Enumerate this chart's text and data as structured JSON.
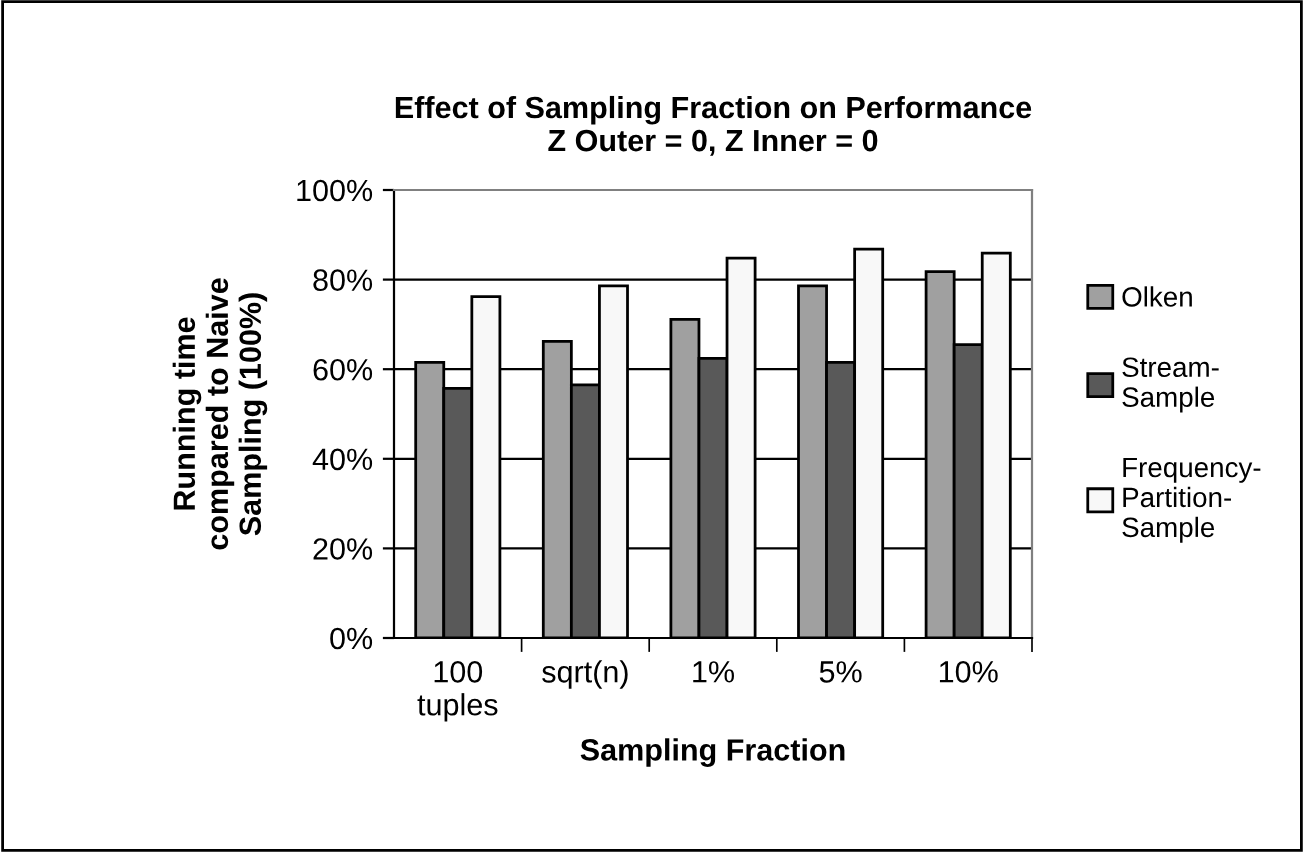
{
  "chart_data": {
    "type": "bar",
    "title": "Effect of Sampling Fraction on Performance\nZ Outer = 0, Z Inner = 0",
    "xlabel": "Sampling Fraction",
    "ylabel": "Running time\ncompared to Naive\nSampling (100%)",
    "categories": [
      "100\ntuples",
      "sqrt(n)",
      "1%",
      "5%",
      "10%"
    ],
    "series": [
      {
        "name": "Olken",
        "color": "#a0a0a0",
        "values": [
          61.5,
          66.2,
          71.1,
          78.6,
          81.8
        ]
      },
      {
        "name": "Stream-\nSample",
        "color": "#595959",
        "values": [
          55.7,
          56.5,
          62.4,
          61.5,
          65.5
        ]
      },
      {
        "name": "Frequency-\nPartition-\nSample",
        "color": "#f8f8f8",
        "values": [
          76.2,
          78.6,
          84.8,
          86.8,
          85.9
        ]
      }
    ],
    "ylim": [
      0,
      100
    ],
    "yticks": [
      {
        "value": 0,
        "label": "0%"
      },
      {
        "value": 20,
        "label": "20%"
      },
      {
        "value": 40,
        "label": "40%"
      },
      {
        "value": 60,
        "label": "60%"
      },
      {
        "value": 80,
        "label": "80%"
      },
      {
        "value": 100,
        "label": "100%"
      }
    ],
    "grid": "y",
    "legend": "right"
  }
}
